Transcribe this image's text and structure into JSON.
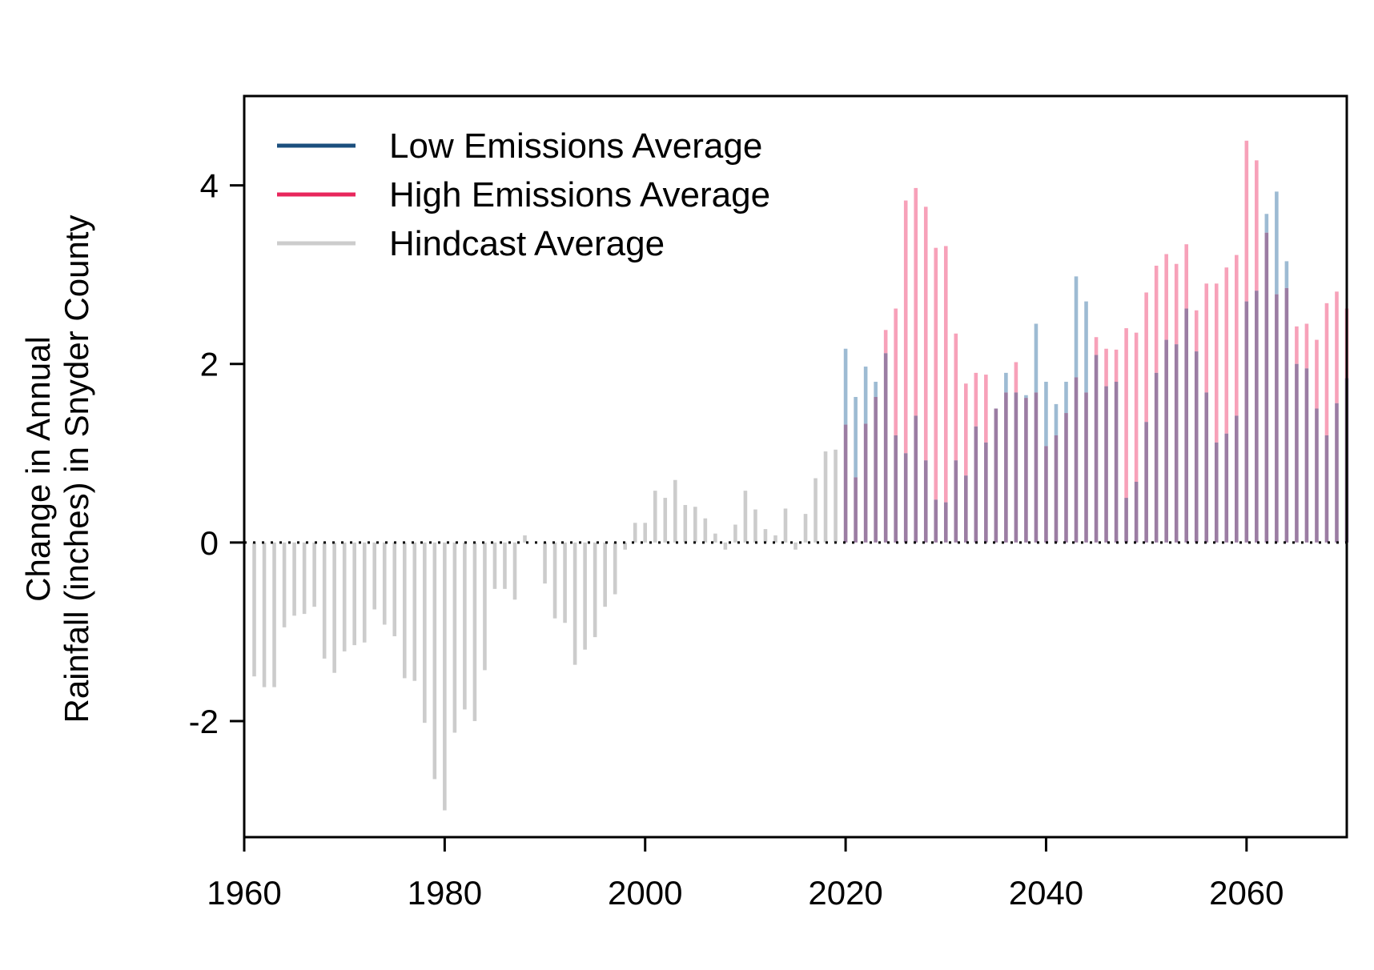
{
  "chart_data": {
    "type": "bar",
    "title": "",
    "xlabel": "",
    "ylabel_lines": [
      "Change in Annual",
      "Rainfall (inches) in Snyder County"
    ],
    "xlim": [
      1960,
      2070
    ],
    "ylim": [
      -3.3,
      5.0
    ],
    "x_ticks": [
      1960,
      1980,
      2000,
      2020,
      2040,
      2060
    ],
    "y_ticks": [
      -2,
      0,
      2,
      4
    ],
    "zero_line": true,
    "legend_position": "top-left",
    "colors": {
      "low": "#9DBBD3",
      "high": "#F7A1B9",
      "overlap": "#9B7DA3",
      "hindcast": "#CCCCCC",
      "legend_low": "#1B4F7E",
      "legend_high": "#E8265C",
      "legend_hindcast": "#CCCCCC"
    },
    "series": [
      {
        "name": "Low Emissions Average",
        "years_start": 2020,
        "values": [
          2.17,
          1.63,
          1.97,
          1.8,
          2.12,
          1.2,
          1.0,
          1.42,
          0.92,
          0.48,
          0.45,
          0.92,
          0.75,
          1.3,
          1.12,
          1.5,
          1.9,
          1.68,
          1.65,
          2.45,
          1.8,
          1.55,
          1.8,
          2.98,
          2.7,
          2.1,
          1.75,
          1.8,
          0.5,
          0.68,
          1.35,
          1.9,
          2.27,
          2.22,
          2.62,
          2.14,
          1.68,
          1.12,
          1.22,
          1.42,
          2.7,
          2.82,
          3.68,
          3.93,
          3.15,
          2.0,
          1.95,
          1.5,
          1.2,
          1.56,
          1.84,
          2.02
        ]
      },
      {
        "name": "High Emissions Average",
        "years_start": 2020,
        "values": [
          1.32,
          0.73,
          1.33,
          1.63,
          2.38,
          2.62,
          3.83,
          3.97,
          3.76,
          3.3,
          3.32,
          2.34,
          1.78,
          1.9,
          1.88,
          1.5,
          1.68,
          2.02,
          1.62,
          1.68,
          1.08,
          1.2,
          1.45,
          1.85,
          1.68,
          2.3,
          2.17,
          2.16,
          2.4,
          2.35,
          2.8,
          3.1,
          3.23,
          3.12,
          3.34,
          2.6,
          2.9,
          2.9,
          3.08,
          3.22,
          4.5,
          4.28,
          3.47,
          2.78,
          2.85,
          2.42,
          2.45,
          2.27,
          2.68,
          2.81,
          2.62,
          2.62
        ]
      },
      {
        "name": "Hindcast Average",
        "years_start": 1961,
        "values": [
          -1.5,
          -1.62,
          -1.62,
          -0.95,
          -0.82,
          -0.8,
          -0.72,
          -1.3,
          -1.46,
          -1.22,
          -1.15,
          -1.12,
          -0.75,
          -0.92,
          -1.05,
          -1.52,
          -1.55,
          -2.02,
          -2.65,
          -3.0,
          -2.13,
          -1.87,
          -2.0,
          -1.43,
          -0.52,
          -0.52,
          -0.64,
          0.08,
          0.0,
          -0.46,
          -0.85,
          -0.9,
          -1.37,
          -1.2,
          -1.06,
          -0.72,
          -0.58,
          -0.08,
          0.22,
          0.22,
          0.58,
          0.5,
          0.7,
          0.42,
          0.4,
          0.27,
          0.1,
          -0.08,
          0.2,
          0.58,
          0.37,
          0.15,
          0.08,
          0.38,
          -0.08,
          0.32,
          0.72,
          1.02,
          1.04
        ]
      }
    ]
  },
  "legend": [
    {
      "label": "Low Emissions Average",
      "color": "#1B4F7E"
    },
    {
      "label": "High Emissions Average",
      "color": "#E8265C"
    },
    {
      "label": "Hindcast Average",
      "color": "#CCCCCC"
    }
  ]
}
